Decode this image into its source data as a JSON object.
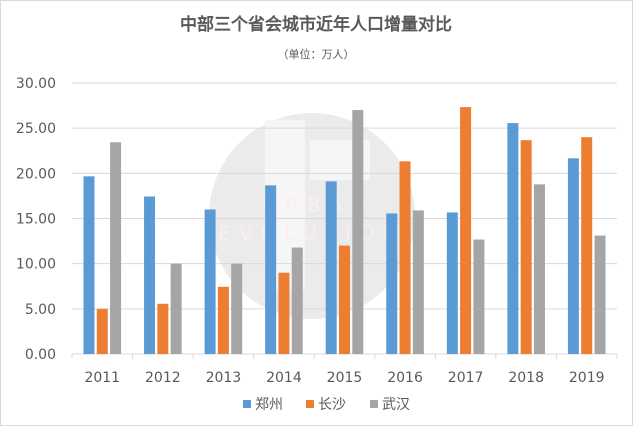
{
  "chart_data": {
    "type": "bar",
    "title": "中部三个省会城市近年人口增量对比",
    "subtitle": "（单位：万人）",
    "xlabel": "",
    "ylabel": "",
    "ylim": [
      0,
      30
    ],
    "yticks": [
      "0.00",
      "5.00",
      "10.00",
      "15.00",
      "20.00",
      "25.00",
      "30.00"
    ],
    "grid": true,
    "legend_position": "bottom",
    "categories": [
      "2011",
      "2012",
      "2013",
      "2014",
      "2015",
      "2016",
      "2017",
      "2018",
      "2019"
    ],
    "series": [
      {
        "name": "郑州",
        "color": "#5b9bd5",
        "values": [
          19.67,
          17.44,
          16.0,
          18.67,
          19.11,
          15.56,
          15.67,
          25.56,
          21.67
        ]
      },
      {
        "name": "长沙",
        "color": "#ed7d31",
        "values": [
          5.0,
          5.56,
          7.44,
          9.0,
          12.0,
          21.33,
          27.33,
          23.67,
          24.0
        ]
      },
      {
        "name": "武汉",
        "color": "#a5a5a5",
        "values": [
          23.44,
          10.0,
          10.0,
          11.78,
          27.0,
          15.89,
          12.67,
          18.78,
          13.11
        ]
      }
    ]
  },
  "watermark": {
    "line1": "URBAN",
    "line2": "EVOLUTION"
  }
}
